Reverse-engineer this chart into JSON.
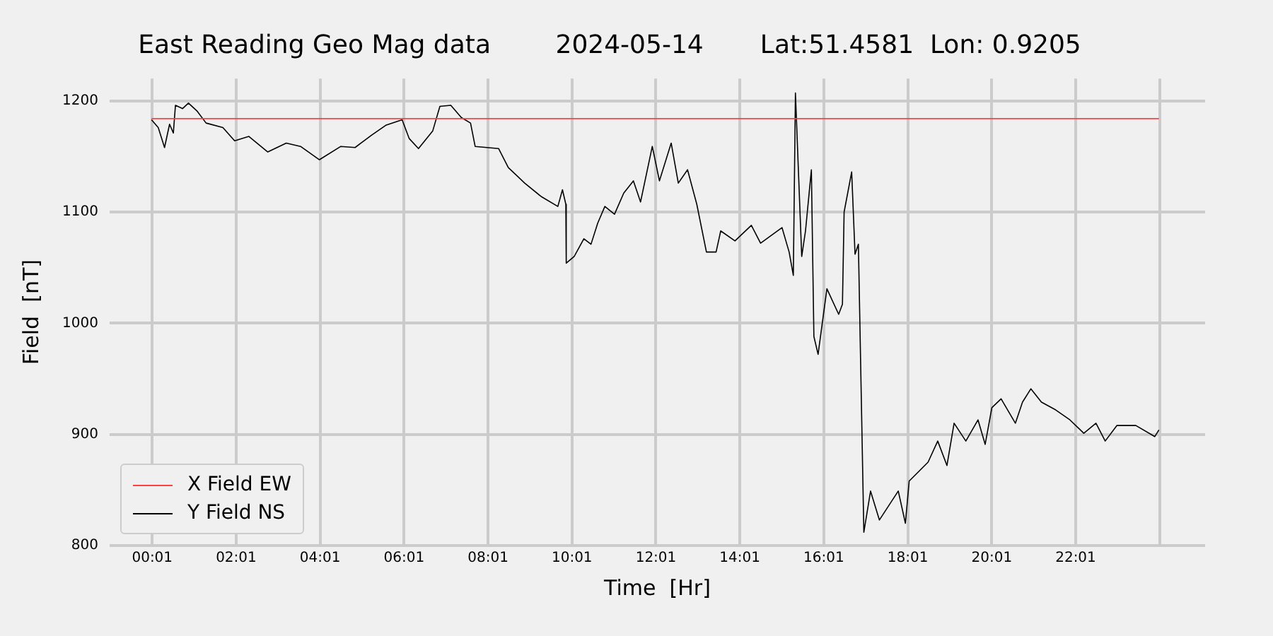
{
  "chart_data": {
    "type": "line",
    "title": "East Reading Geo Mag data        2024-05-14       Lat:51.4581  Lon: 0.9205",
    "xlabel": "Time  [Hr]",
    "ylabel": "Field  [nT]",
    "xlim": [
      -1.0,
      25.1
    ],
    "ylim": [
      800,
      1220
    ],
    "xticks": [
      {
        "value": 0.0167,
        "label": "00:01"
      },
      {
        "value": 2.0167,
        "label": "02:01"
      },
      {
        "value": 4.0167,
        "label": "04:01"
      },
      {
        "value": 6.0167,
        "label": "06:01"
      },
      {
        "value": 8.0167,
        "label": "08:01"
      },
      {
        "value": 10.0167,
        "label": "10:01"
      },
      {
        "value": 12.0167,
        "label": "12:01"
      },
      {
        "value": 14.0167,
        "label": "14:01"
      },
      {
        "value": 16.0167,
        "label": "16:01"
      },
      {
        "value": 18.0167,
        "label": "18:01"
      },
      {
        "value": 20.0167,
        "label": "20:01"
      },
      {
        "value": 22.0167,
        "label": "22:01"
      },
      {
        "value": 24.0167,
        "label": null
      }
    ],
    "yticks": [
      800,
      900,
      1000,
      1100,
      1200
    ],
    "grid": true,
    "legend": "bottom left",
    "marker": "none",
    "line_style": "solid",
    "series": [
      {
        "name": "X Field EW",
        "color": "#ff4040",
        "x": [
          0,
          4,
          8,
          12,
          16,
          20,
          24
        ],
        "values": [
          1184,
          1184,
          1184,
          1184,
          1184,
          1184,
          1184
        ]
      },
      {
        "name": "Y Field NS",
        "color": "#000000",
        "x": [
          0,
          0.16,
          0.31,
          0.43,
          0.52,
          0.57,
          0.74,
          0.88,
          1.08,
          1.3,
          1.7,
          1.98,
          2.32,
          2.77,
          3.21,
          3.55,
          4.0,
          4.51,
          4.85,
          5.24,
          5.58,
          5.97,
          6.14,
          6.36,
          6.7,
          6.87,
          7.13,
          7.38,
          7.6,
          7.71,
          8.27,
          8.5,
          8.89,
          9.28,
          9.68,
          9.79,
          9.87,
          9.88,
          10.07,
          10.3,
          10.47,
          10.63,
          10.8,
          11.03,
          11.25,
          11.48,
          11.65,
          11.93,
          12.1,
          12.38,
          12.55,
          12.77,
          12.99,
          13.22,
          13.45,
          13.56,
          13.9,
          14.29,
          14.51,
          15.02,
          15.19,
          15.29,
          15.34,
          15.49,
          15.58,
          15.72,
          15.78,
          15.88,
          16.09,
          16.37,
          16.46,
          16.5,
          16.68,
          16.76,
          16.84,
          16.97,
          17.13,
          17.34,
          17.79,
          17.96,
          18.05,
          18.5,
          18.73,
          18.95,
          19.12,
          19.4,
          19.69,
          19.86,
          20.02,
          20.24,
          20.58,
          20.75,
          20.95,
          21.2,
          21.54,
          21.88,
          22.21,
          22.5,
          22.72,
          23.0,
          23.45,
          23.9,
          24.0
        ],
        "values": [
          1183,
          1176,
          1158,
          1179,
          1171,
          1196,
          1193,
          1198,
          1191,
          1180,
          1176,
          1164,
          1168,
          1154,
          1162,
          1159,
          1147,
          1159,
          1158,
          1169,
          1178,
          1183,
          1166,
          1157,
          1173,
          1195,
          1196,
          1185,
          1180,
          1159,
          1157,
          1140,
          1126,
          1114,
          1105,
          1120,
          1107,
          1054,
          1060,
          1076,
          1071,
          1090,
          1105,
          1098,
          1117,
          1128,
          1109,
          1159,
          1128,
          1162,
          1126,
          1138,
          1107,
          1064,
          1064,
          1083,
          1074,
          1088,
          1072,
          1086,
          1064,
          1043,
          1207,
          1060,
          1083,
          1138,
          988,
          972,
          1031,
          1008,
          1017,
          1100,
          1136,
          1062,
          1071,
          812,
          849,
          823,
          849,
          820,
          858,
          875,
          894,
          872,
          910,
          894,
          913,
          891,
          924,
          932,
          910,
          929,
          941,
          929,
          922,
          913,
          901,
          910,
          894,
          908,
          908,
          898,
          904
        ]
      }
    ]
  }
}
